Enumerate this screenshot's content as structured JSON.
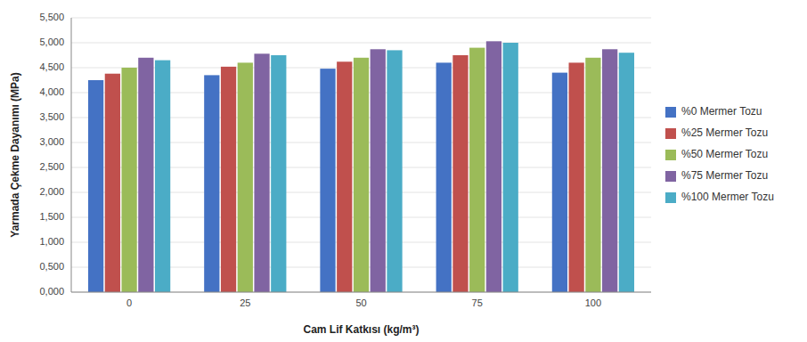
{
  "chart_data": {
    "type": "bar",
    "x_label": "Cam Lif Katkısı (kg/m³)",
    "y_label": "Yarmada Çekme Dayanımı (MPa)",
    "categories": [
      "0",
      "25",
      "50",
      "75",
      "100"
    ],
    "series": [
      {
        "name": "%0 Mermer Tozu",
        "color": "#4472C4",
        "values": [
          4.25,
          4.35,
          4.48,
          4.6,
          4.4
        ]
      },
      {
        "name": "%25 Mermer Tozu",
        "color": "#C0504D",
        "values": [
          4.38,
          4.52,
          4.62,
          4.75,
          4.6
        ]
      },
      {
        "name": "%50 Mermer Tozu",
        "color": "#9BBB59",
        "values": [
          4.5,
          4.6,
          4.7,
          4.9,
          4.7
        ]
      },
      {
        "name": "%75 Mermer Tozu",
        "color": "#8064A2",
        "values": [
          4.7,
          4.78,
          4.87,
          5.03,
          4.87
        ]
      },
      {
        "name": "%100 Mermer Tozu",
        "color": "#4BACC6",
        "values": [
          4.65,
          4.75,
          4.85,
          5.0,
          4.8
        ]
      }
    ],
    "ylim": [
      0.0,
      5.5
    ],
    "yticks": [
      {
        "value": 0.0,
        "label": "0,000"
      },
      {
        "value": 0.5,
        "label": "0,500"
      },
      {
        "value": 1.0,
        "label": "1,000"
      },
      {
        "value": 1.5,
        "label": "1,500"
      },
      {
        "value": 2.0,
        "label": "2,000"
      },
      {
        "value": 2.5,
        "label": "2,500"
      },
      {
        "value": 3.0,
        "label": "3,000"
      },
      {
        "value": 3.5,
        "label": "3,500"
      },
      {
        "value": 4.0,
        "label": "4,000"
      },
      {
        "value": 4.5,
        "label": "4,500"
      },
      {
        "value": 5.0,
        "label": "5,000"
      },
      {
        "value": 5.5,
        "label": "5,500"
      }
    ],
    "grid": true,
    "legend": "right"
  }
}
